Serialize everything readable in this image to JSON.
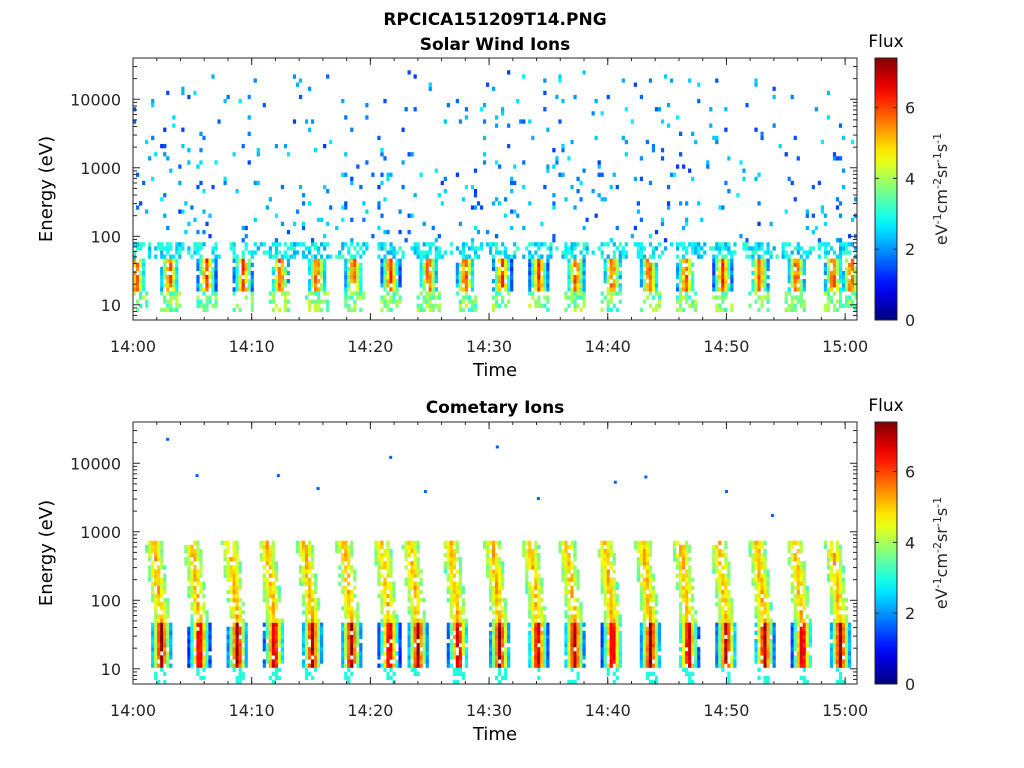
{
  "figure": {
    "title": "RPCICA151209T14.PNG"
  },
  "colorbar": {
    "label": "Flux",
    "unit_html": [
      "eV",
      "-1",
      "cm",
      "-2",
      "sr",
      "-1",
      "s",
      "-1"
    ],
    "ticks": [
      "0",
      "2",
      "4",
      "6"
    ],
    "range": [
      0,
      7.4
    ],
    "colormap": "jet"
  },
  "chart_data": [
    {
      "type": "heatmap",
      "title": "Solar Wind Ions",
      "xlabel": "Time",
      "ylabel": "Energy (eV)",
      "x_ticks": [
        "14:00",
        "14:10",
        "14:20",
        "14:30",
        "14:40",
        "14:50",
        "15:00"
      ],
      "y_ticks": [
        "10",
        "100",
        "1000",
        "10000"
      ],
      "y_scale": "log",
      "ylim_eV": [
        6,
        40000
      ],
      "xlim_minutes": [
        0,
        61
      ],
      "pattern": {
        "burst_times_min": [
          0.3,
          3.1,
          6.2,
          9.3,
          12.4,
          15.5,
          18.6,
          21.7,
          24.9,
          28.0,
          31.1,
          34.2,
          37.3,
          40.4,
          43.5,
          46.6,
          49.7,
          52.8,
          55.9,
          59.0,
          60.5
        ],
        "core_energy_eV": [
          15,
          45
        ],
        "core_flux_max": 5.8,
        "background_energy_eV": [
          50,
          20000
        ],
        "background_flux": [
          1.5,
          2.6
        ]
      },
      "grid": false
    },
    {
      "type": "heatmap",
      "title": "Cometary Ions",
      "xlabel": "Time",
      "ylabel": "Energy (eV)",
      "x_ticks": [
        "14:00",
        "14:10",
        "14:20",
        "14:30",
        "14:40",
        "14:50",
        "15:00"
      ],
      "y_ticks": [
        "10",
        "100",
        "1000",
        "10000"
      ],
      "y_scale": "log",
      "ylim_eV": [
        6,
        40000
      ],
      "xlim_minutes": [
        0,
        61
      ],
      "pattern": {
        "burst_times_min": [
          2.4,
          5.6,
          8.8,
          11.9,
          15.1,
          18.4,
          21.6,
          24.0,
          27.4,
          30.9,
          34.1,
          37.2,
          40.4,
          43.6,
          46.8,
          50.0,
          53.2,
          56.4,
          59.6
        ],
        "core_energy_eV": [
          15,
          45
        ],
        "core_flux_max": 7.0,
        "streak_energy_eV": [
          45,
          700
        ],
        "sparse_high_energy_points_eV": [
          6500,
          4200,
          3800,
          3000,
          6200,
          1700,
          22000,
          6500,
          12000,
          17000,
          5200,
          3800
        ]
      },
      "grid": false
    }
  ]
}
